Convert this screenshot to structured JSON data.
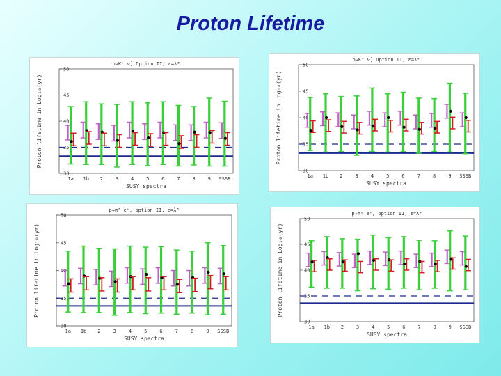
{
  "slide": {
    "title": "Proton Lifetime"
  },
  "chart_data": [
    {
      "type": "scatter",
      "title": "p→K⁺ ν̄, Option II, ε=λ³",
      "xlabel": "SUSY spectra",
      "ylabel": "Proton lifetime in Log₁₀(yr)",
      "ylim": [
        30,
        50
      ],
      "yticks": [
        "30",
        "35",
        "40",
        "45",
        "50"
      ],
      "categories": [
        "1a",
        "1b",
        "2",
        "3",
        "4",
        "5",
        "6",
        "7",
        "8",
        "9",
        "SSSB"
      ],
      "limit": 33.3,
      "dashed_level": 35,
      "series": [
        {
          "name": "purple",
          "center": [
            37.8,
            38.3,
            38.0,
            37.7,
            38.3,
            38.0,
            38.3,
            37.8,
            37.8,
            38.3,
            38.2
          ],
          "err": [
            1.4,
            1.5,
            1.5,
            1.5,
            1.5,
            1.5,
            1.5,
            1.5,
            1.5,
            1.5,
            1.5
          ]
        },
        {
          "name": "green",
          "center": [
            37.3,
            37.7,
            37.5,
            37.2,
            37.7,
            37.5,
            37.7,
            37.2,
            37.2,
            37.9,
            37.6
          ],
          "err": [
            5.5,
            6.0,
            5.8,
            6.0,
            6.0,
            6.0,
            6.0,
            5.8,
            5.6,
            6.5,
            6.2
          ]
        },
        {
          "name": "black",
          "center": [
            36.1,
            38.2,
            37.9,
            36.3,
            38.1,
            36.8,
            37.8,
            35.7,
            37.9,
            37.8,
            36.7
          ],
          "err": [
            0,
            0,
            0,
            0,
            0,
            0,
            0,
            0,
            0,
            0,
            0
          ]
        },
        {
          "name": "red",
          "center": [
            36.5,
            36.8,
            36.5,
            36.2,
            36.6,
            36.4,
            36.6,
            36.0,
            36.2,
            37.0,
            36.6
          ],
          "err": [
            1.2,
            1.2,
            1.2,
            1.2,
            1.2,
            1.2,
            1.2,
            1.2,
            1.2,
            1.2,
            1.2
          ]
        }
      ]
    },
    {
      "type": "scatter",
      "title": "p→K⁺ ν̄, Option II, ε=λ⁴",
      "xlabel": "SUSY spectra",
      "ylabel": "Proton lifetime in Log₁₀(yr)",
      "ylim": [
        30,
        50
      ],
      "yticks": [
        "30",
        "35",
        "40",
        "45",
        "50"
      ],
      "categories": [
        "1a",
        "1b",
        "2",
        "3",
        "4",
        "5",
        "6",
        "7",
        "8",
        "9",
        "SSSB"
      ],
      "limit": 33.3,
      "dashed_level": 35,
      "series": [
        {
          "name": "purple",
          "center": [
            39.5,
            39.8,
            39.6,
            39.2,
            39.9,
            39.6,
            39.9,
            39.2,
            39.5,
            41.2,
            39.6
          ],
          "err": [
            1.3,
            1.3,
            1.3,
            1.3,
            1.3,
            1.3,
            1.3,
            1.3,
            1.3,
            1.3,
            1.3
          ]
        },
        {
          "name": "green",
          "center": [
            38.8,
            39.0,
            38.8,
            38.5,
            39.6,
            39.0,
            39.2,
            38.5,
            38.6,
            40.0,
            38.9
          ],
          "err": [
            5.0,
            5.5,
            5.2,
            5.6,
            6.0,
            5.5,
            5.6,
            5.2,
            5.0,
            6.5,
            5.7
          ]
        },
        {
          "name": "black",
          "center": [
            37.6,
            40.0,
            38.3,
            37.7,
            38.4,
            40.0,
            38.2,
            37.8,
            38.0,
            41.2,
            40.0
          ],
          "err": [
            0,
            0,
            0,
            0,
            0,
            0,
            0,
            0,
            0,
            0,
            0
          ]
        },
        {
          "name": "red",
          "center": [
            38.3,
            38.5,
            38.2,
            38.0,
            38.6,
            38.4,
            38.6,
            38.0,
            38.2,
            39.0,
            38.4
          ],
          "err": [
            1.1,
            1.1,
            1.1,
            1.1,
            1.1,
            1.1,
            1.1,
            1.1,
            1.1,
            1.1,
            1.1
          ]
        }
      ]
    },
    {
      "type": "scatter",
      "title": "p→π⁰ e⁺, option II, ε=λ³",
      "xlabel": "SUSY spectra",
      "ylabel": "Proton lifetime in Log₁₀(yr)",
      "ylim": [
        30,
        50
      ],
      "yticks": [
        "30",
        "35",
        "40",
        "45",
        "50"
      ],
      "categories": [
        "1a",
        "1b",
        "2",
        "3",
        "4",
        "5",
        "6",
        "7",
        "8",
        "9",
        "SSSB"
      ],
      "limit": 33.6,
      "dashed_level": 35,
      "series": [
        {
          "name": "purple",
          "center": [
            38.6,
            39.0,
            38.8,
            38.5,
            39.1,
            38.9,
            39.1,
            38.6,
            38.6,
            39.1,
            39.0
          ],
          "err": [
            1.4,
            1.4,
            1.4,
            1.4,
            1.4,
            1.4,
            1.4,
            1.4,
            1.4,
            1.4,
            1.4
          ]
        },
        {
          "name": "green",
          "center": [
            38.0,
            38.4,
            38.2,
            37.9,
            38.4,
            38.2,
            38.3,
            37.9,
            37.9,
            38.5,
            38.3
          ],
          "err": [
            5.5,
            6.0,
            5.8,
            6.0,
            6.0,
            6.0,
            6.0,
            5.8,
            5.6,
            6.5,
            6.2
          ]
        },
        {
          "name": "black",
          "center": [
            37.6,
            39.0,
            38.6,
            38.0,
            38.9,
            39.3,
            38.7,
            37.5,
            38.7,
            39.7,
            39.4
          ],
          "err": [
            0,
            0,
            0,
            0,
            0,
            0,
            0,
            0,
            0,
            0,
            0
          ]
        },
        {
          "name": "red",
          "center": [
            37.3,
            37.7,
            37.5,
            37.3,
            37.7,
            37.5,
            37.7,
            37.2,
            37.4,
            37.9,
            37.7
          ],
          "err": [
            1.2,
            1.2,
            1.2,
            1.2,
            1.2,
            1.2,
            1.2,
            1.2,
            1.2,
            1.2,
            1.2
          ]
        }
      ]
    },
    {
      "type": "scatter",
      "title": "p→π⁰ e⁺, option II, ε=λ⁴",
      "xlabel": "SUSY spectra",
      "ylabel": "Proton lifetime in Log₁₀(yr)",
      "ylim": [
        30,
        50
      ],
      "yticks": [
        "30",
        "35",
        "40",
        "45",
        "50"
      ],
      "categories": [
        "1a",
        "1b",
        "2",
        "3",
        "4",
        "5",
        "6",
        "7",
        "8",
        "9",
        "SSSB"
      ],
      "limit": 33.6,
      "dashed_level": 35,
      "series": [
        {
          "name": "purple",
          "center": [
            42.0,
            42.3,
            42.1,
            41.8,
            42.4,
            42.2,
            42.4,
            41.8,
            42.0,
            42.6,
            42.3
          ],
          "err": [
            1.3,
            1.3,
            1.3,
            1.3,
            1.3,
            1.3,
            1.3,
            1.3,
            1.3,
            1.3,
            1.3
          ]
        },
        {
          "name": "green",
          "center": [
            41.2,
            41.5,
            41.3,
            41.0,
            41.6,
            41.3,
            41.5,
            41.0,
            41.1,
            41.8,
            41.4
          ],
          "err": [
            4.5,
            5.0,
            4.8,
            5.0,
            5.2,
            5.0,
            5.0,
            4.8,
            4.6,
            5.8,
            5.2
          ]
        },
        {
          "name": "black",
          "center": [
            41.6,
            42.4,
            41.6,
            43.2,
            41.9,
            42.0,
            41.2,
            41.7,
            41.2,
            42.1,
            40.7
          ],
          "err": [
            0,
            0,
            0,
            0,
            0,
            0,
            0,
            0,
            0,
            0,
            0
          ]
        },
        {
          "name": "red",
          "center": [
            40.8,
            41.1,
            40.9,
            40.6,
            41.1,
            40.9,
            41.1,
            40.6,
            40.8,
            41.3,
            41.0
          ],
          "err": [
            1.1,
            1.1,
            1.1,
            1.1,
            1.1,
            1.1,
            1.1,
            1.1,
            1.1,
            1.1,
            1.1
          ]
        }
      ]
    }
  ],
  "colors": {
    "purple": "#c060c8",
    "green": "#3ccf3c",
    "black": "#000000",
    "red": "#d02020",
    "limit": "#1a2a90"
  }
}
